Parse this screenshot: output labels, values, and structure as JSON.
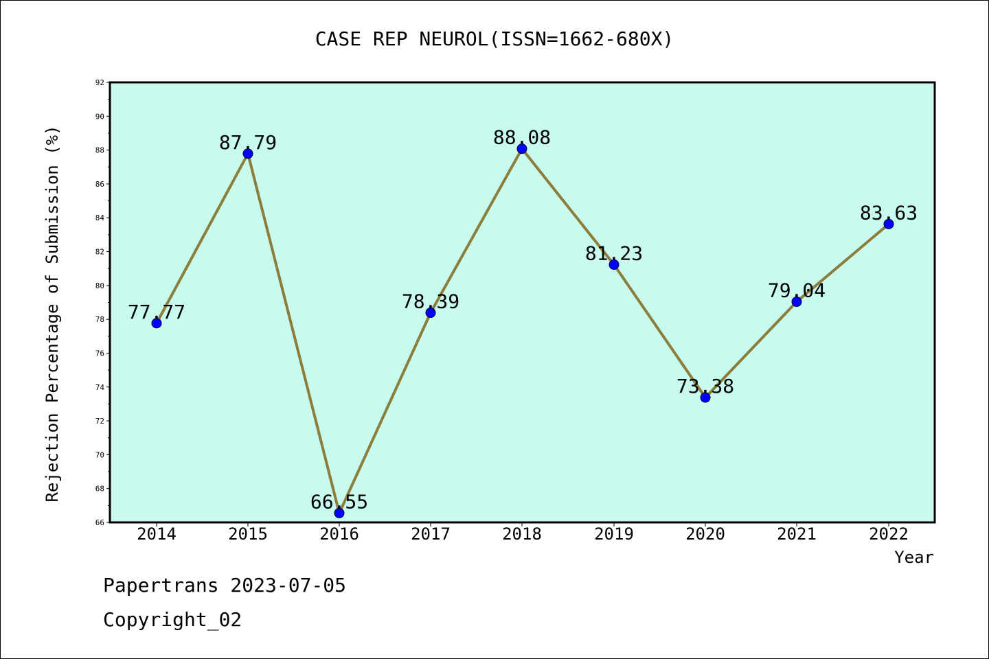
{
  "chart_data": {
    "type": "line",
    "title": "CASE REP NEUROL(ISSN=1662-680X)",
    "xlabel": "Year",
    "ylabel": "Rejection Percentage of Submission (%)",
    "categories": [
      "2014",
      "2015",
      "2016",
      "2017",
      "2018",
      "2019",
      "2020",
      "2021",
      "2022"
    ],
    "series": [
      {
        "values": [
          77.77,
          87.79,
          66.55,
          78.39,
          88.08,
          81.23,
          73.38,
          79.04,
          83.63
        ],
        "data_labels": [
          "77.77",
          "87.79",
          "66.55",
          "78.39",
          "88.08",
          "81.23",
          "73.38",
          "79.04",
          "83.63"
        ],
        "line_color": "#8B7D3A",
        "marker_color": "#0000FF"
      }
    ],
    "ylim": [
      66,
      92
    ],
    "yticks": [
      "66",
      "68",
      "70",
      "72",
      "74",
      "76",
      "78",
      "80",
      "82",
      "84",
      "86",
      "88",
      "90",
      "92"
    ],
    "grid": false,
    "legend": "none",
    "plot_background": "#C8FAEE"
  },
  "footer": {
    "line1": "Papertrans 2023-07-05",
    "line2": "Copyright_02"
  }
}
